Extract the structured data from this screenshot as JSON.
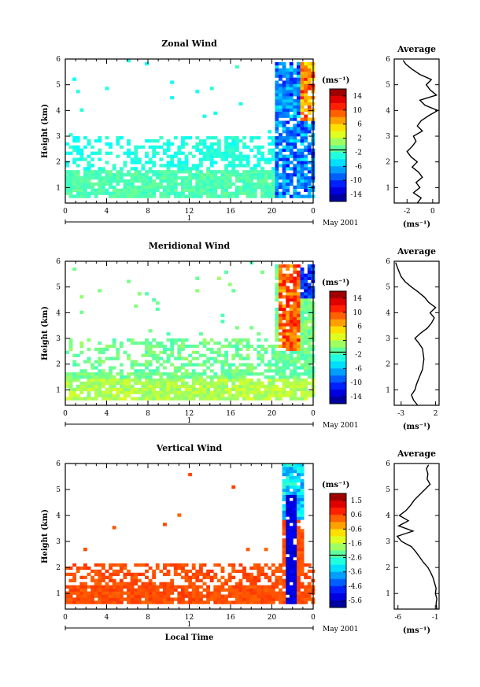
{
  "chart_data": [
    {
      "type": "heatmap",
      "title": "Zonal Wind",
      "xlabel": "",
      "ylabel": "Height (km)",
      "xlim": [
        0,
        24
      ],
      "ylim": [
        0.4,
        6
      ],
      "xticks": [
        "0",
        "4",
        "8",
        "12",
        "16",
        "20",
        "0"
      ],
      "yticks": [
        "1",
        "2",
        "3",
        "4",
        "5",
        "6"
      ],
      "date_label": "1",
      "month_label": "May 2001",
      "colorbar": {
        "unit": "(ms⁻¹)",
        "ticks": [
          "14",
          "10",
          "6",
          "2",
          "-2",
          "-6",
          "-10",
          "-14"
        ],
        "min": -16,
        "max": 16
      },
      "average": {
        "title": "Average",
        "unit": "(ms⁻¹)",
        "xticks": [
          "-2",
          "0"
        ],
        "xlim": [
          -3,
          0.5
        ],
        "heights": [
          0.4,
          0.6,
          0.8,
          1.0,
          1.2,
          1.4,
          1.6,
          1.8,
          2.0,
          2.2,
          2.4,
          2.6,
          2.8,
          3.0,
          3.2,
          3.4,
          3.6,
          3.8,
          4.0,
          4.2,
          4.4,
          4.6,
          4.8,
          5.0,
          5.2,
          5.4,
          5.6,
          5.8,
          5.95
        ],
        "values": [
          -1.2,
          -0.9,
          -1.5,
          -1.0,
          -1.3,
          -0.8,
          -1.1,
          -1.6,
          -1.2,
          -1.7,
          -2.0,
          -1.6,
          -1.3,
          -1.5,
          -0.8,
          -1.2,
          -0.9,
          -0.3,
          0.4,
          -0.6,
          -1.0,
          0.3,
          -0.2,
          -0.5,
          -0.1,
          -1.0,
          -1.6,
          -2.1,
          -2.3
        ]
      }
    },
    {
      "type": "heatmap",
      "title": "Meridional Wind",
      "xlabel": "",
      "ylabel": "Height (km)",
      "xlim": [
        0,
        24
      ],
      "ylim": [
        0.4,
        6
      ],
      "xticks": [
        "0",
        "4",
        "8",
        "12",
        "16",
        "20",
        "0"
      ],
      "yticks": [
        "1",
        "2",
        "3",
        "4",
        "5",
        "6"
      ],
      "date_label": "1",
      "month_label": "May 2001",
      "colorbar": {
        "unit": "(ms⁻¹)",
        "ticks": [
          "14",
          "10",
          "6",
          "2",
          "-2",
          "-6",
          "-10",
          "-14"
        ],
        "min": -16,
        "max": 16
      },
      "average": {
        "title": "Average",
        "unit": "(ms⁻¹)",
        "xticks": [
          "-3",
          "2"
        ],
        "xlim": [
          -4,
          2.5
        ],
        "heights": [
          0.4,
          0.6,
          0.8,
          1.0,
          1.2,
          1.4,
          1.6,
          1.8,
          2.0,
          2.2,
          2.4,
          2.6,
          2.8,
          3.0,
          3.2,
          3.4,
          3.6,
          3.8,
          4.0,
          4.2,
          4.4,
          4.6,
          4.8,
          5.0,
          5.2,
          5.4,
          5.6,
          5.8,
          5.95
        ],
        "values": [
          -0.6,
          -1.2,
          -1.5,
          -1.0,
          -0.8,
          -0.5,
          -0.2,
          0.1,
          0.2,
          0.3,
          0.2,
          0.1,
          -0.4,
          -1.0,
          -0.2,
          0.8,
          1.4,
          1.8,
          1.2,
          2.0,
          1.0,
          0.4,
          -0.5,
          -1.5,
          -2.4,
          -3.0,
          -3.3,
          -3.6,
          -3.8
        ]
      }
    },
    {
      "type": "heatmap",
      "title": "Vertical Wind",
      "xlabel": "Local Time",
      "ylabel": "Height (km)",
      "xlim": [
        0,
        24
      ],
      "ylim": [
        0.4,
        6
      ],
      "xticks": [
        "0",
        "4",
        "8",
        "12",
        "16",
        "20",
        "0"
      ],
      "yticks": [
        "1",
        "2",
        "3",
        "4",
        "5",
        "6"
      ],
      "date_label": "1",
      "month_label": "May 2001",
      "colorbar": {
        "unit": "(ms⁻¹)",
        "ticks": [
          "1.5",
          "0.6",
          "-0.6",
          "-1.6",
          "-2.6",
          "-3.6",
          "-4.6",
          "-5.6"
        ],
        "min": -6,
        "max": 2
      },
      "average": {
        "title": "Average",
        "unit": "(ms⁻¹)",
        "xticks": [
          "-6",
          "-1"
        ],
        "xlim": [
          -6.5,
          -0.5
        ],
        "heights": [
          0.4,
          0.6,
          0.8,
          1.0,
          1.2,
          1.4,
          1.6,
          1.8,
          2.0,
          2.2,
          2.4,
          2.6,
          2.8,
          3.0,
          3.2,
          3.4,
          3.6,
          3.8,
          4.0,
          4.2,
          4.4,
          4.6,
          4.8,
          5.0,
          5.2,
          5.4,
          5.6,
          5.8,
          5.95
        ],
        "values": [
          -0.8,
          -0.9,
          -0.8,
          -1.0,
          -0.9,
          -1.1,
          -1.3,
          -1.6,
          -2.0,
          -2.6,
          -3.1,
          -3.6,
          -4.2,
          -5.5,
          -6.1,
          -4.0,
          -5.9,
          -4.6,
          -5.8,
          -4.9,
          -4.3,
          -3.8,
          -3.1,
          -2.4,
          -1.7,
          -2.1,
          -2.0,
          -2.2,
          -1.9
        ]
      }
    }
  ]
}
